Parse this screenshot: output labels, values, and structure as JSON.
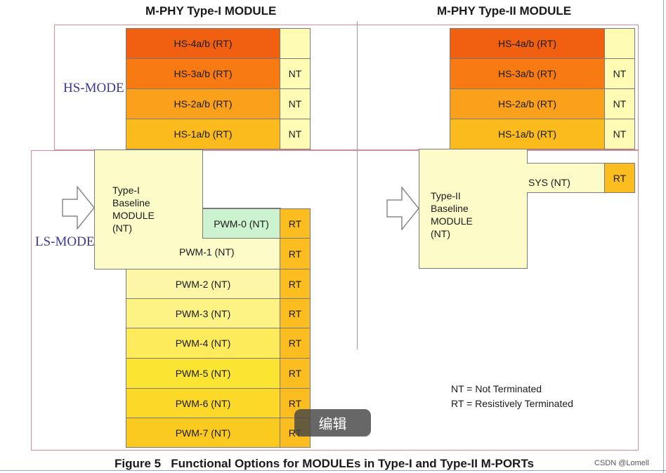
{
  "titles": {
    "type1": "M-PHY Type-I MODULE",
    "type2": "M-PHY Type-II MODULE"
  },
  "modes": {
    "hs": "HS-MODE",
    "ls": "LS-MODE"
  },
  "type1": {
    "hs": [
      {
        "label": "HS-4a/b (RT)",
        "term": ""
      },
      {
        "label": "HS-3a/b (RT)",
        "term": "NT"
      },
      {
        "label": "HS-2a/b (RT)",
        "term": "NT"
      },
      {
        "label": "HS-1a/b (RT)",
        "term": "NT"
      }
    ],
    "baseline": "Type-I\nBaseline\nMODULE\n(NT)",
    "pwm": [
      {
        "label": "PWM-0 (NT)",
        "term": "RT"
      },
      {
        "label": "PWM-1 (NT)",
        "term": "RT"
      },
      {
        "label": "PWM-2 (NT)",
        "term": "RT"
      },
      {
        "label": "PWM-3 (NT)",
        "term": "RT"
      },
      {
        "label": "PWM-4 (NT)",
        "term": "RT"
      },
      {
        "label": "PWM-5 (NT)",
        "term": "RT"
      },
      {
        "label": "PWM-6 (NT)",
        "term": "RT"
      },
      {
        "label": "PWM-7 (NT)",
        "term": "RT"
      }
    ]
  },
  "type2": {
    "hs": [
      {
        "label": "HS-4a/b (RT)",
        "term": ""
      },
      {
        "label": "HS-3a/b (RT)",
        "term": "NT"
      },
      {
        "label": "HS-2a/b (RT)",
        "term": "NT"
      },
      {
        "label": "HS-1a/b (RT)",
        "term": "NT"
      }
    ],
    "baseline": "Type-II\nBaseline\nMODULE\n(NT)",
    "sys": {
      "label": "SYS (NT)",
      "term": "RT"
    }
  },
  "legend": {
    "nt": "NT = Not Terminated",
    "rt": "RT = Resistively Terminated"
  },
  "caption": "Figure 5   Functional Options for MODULEs in Type-I and Type-II M-PORTs",
  "overlay": {
    "edit_button": "编辑",
    "watermark": "CSDN @Lomell"
  }
}
